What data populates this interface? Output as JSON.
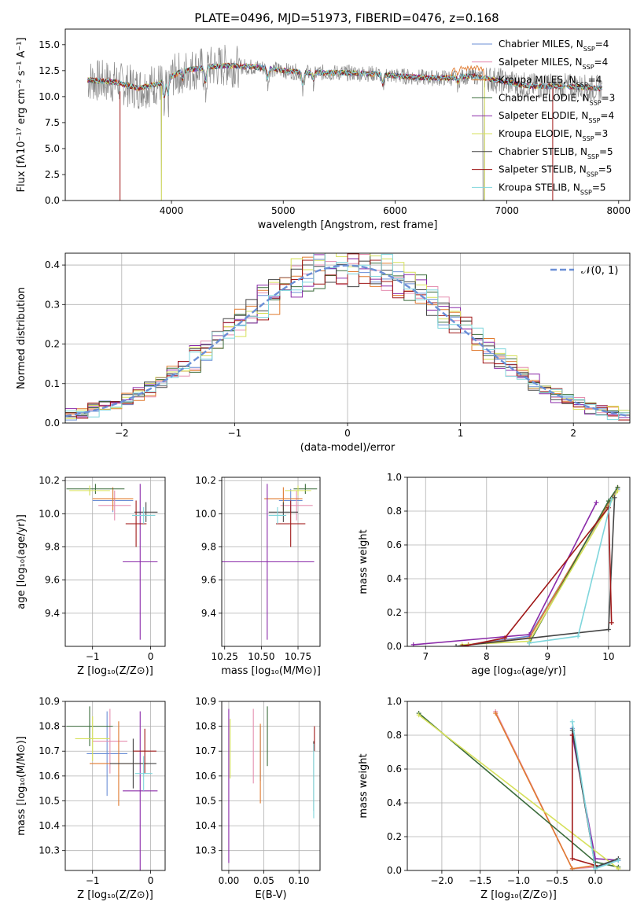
{
  "title": "PLATE=0496, MJD=51973, FIBERID=0476, z=0.168",
  "colors": {
    "c0": "#6b8fd6",
    "c1": "#e58fb0",
    "c2": "#e07a2f",
    "c3": "#3a6b3a",
    "c4": "#8a2aa8",
    "c5": "#d6e05a",
    "c6": "#444444",
    "c7": "#a01818",
    "c8": "#7fd6dc",
    "data": "#888888",
    "norm": "#6b8fd6"
  },
  "chart_data": [
    {
      "id": "spectrum",
      "type": "line",
      "xlabel": "wavelength [Angstrom, rest frame]",
      "ylabel": "Flux [fλ10⁻¹⁷ erg cm⁻² s⁻¹ A⁻¹]",
      "xlim": [
        3050,
        8100
      ],
      "ylim": [
        0,
        16.5
      ],
      "xticks": [
        4000,
        5000,
        6000,
        7000,
        8000
      ],
      "yticks": [
        0.0,
        2.5,
        5.0,
        7.5,
        10.0,
        12.5,
        15.0
      ],
      "legend": {
        "position": "right",
        "entries": [
          "Chabrier MILES, N",
          "Salpeter MILES, N",
          "Kroupa MILES, N",
          "Chabrier ELODIE, N",
          "Salpeter ELODIE, N",
          "Kroupa ELODIE, N",
          "Chabrier STELIB, N",
          "Salpeter STELIB, N",
          "Kroupa STELIB, N"
        ],
        "nssp": [
          "4",
          "4",
          "4",
          "3",
          "4",
          "3",
          "5",
          "5",
          "5"
        ],
        "sub": "SSP"
      },
      "continuum": {
        "x": [
          3250,
          3500,
          3700,
          3900,
          4100,
          4300,
          4500,
          4800,
          5000,
          5200,
          5500,
          5800,
          6000,
          6300,
          6500,
          6700,
          6900,
          7200,
          7500,
          7800
        ],
        "y": [
          11.6,
          11.4,
          10.8,
          11.3,
          12.5,
          12.8,
          13.0,
          12.8,
          12.5,
          12.3,
          12.3,
          12.2,
          12.0,
          11.8,
          11.8,
          12.0,
          11.6,
          11.0,
          11.0,
          10.8
        ]
      }
    },
    {
      "id": "residuals",
      "type": "histogram",
      "xlabel": "(data-model)/error",
      "ylabel": "Normed distribution",
      "xlim": [
        -2.5,
        2.5
      ],
      "ylim": [
        0,
        0.43
      ],
      "xticks": [
        -2,
        -1,
        0,
        1,
        2
      ],
      "yticks": [
        0.0,
        0.1,
        0.2,
        0.3,
        0.4
      ],
      "legend": {
        "label": "𝒩(0, 1)",
        "position": "top-right"
      },
      "bin_width": 0.1
    },
    {
      "id": "age_Z",
      "type": "scatter",
      "xlabel": "Z [log₁₀(Z/Z⊙)]",
      "ylabel": "age  [log₁₀(age/yr)]",
      "xlim": [
        -1.47,
        0.25
      ],
      "ylim": [
        9.2,
        10.22
      ],
      "xticks": [
        -1,
        0
      ],
      "yticks": [
        9.4,
        9.6,
        9.8,
        10.0,
        10.2
      ],
      "points": [
        {
          "c": "c0",
          "x": -0.65,
          "y": 10.08,
          "xe": 0.35,
          "ye": 0.07
        },
        {
          "c": "c1",
          "x": -0.62,
          "y": 10.05,
          "xe": 0.28,
          "ye": 0.09
        },
        {
          "c": "c2",
          "x": -0.65,
          "y": 10.09,
          "xe": 0.35,
          "ye": 0.07
        },
        {
          "c": "c3",
          "x": -0.95,
          "y": 10.15,
          "xe": 0.5,
          "ye": 0.03
        },
        {
          "c": "c4",
          "x": -0.18,
          "y": 9.71,
          "xe": 0.3,
          "ye": 0.47
        },
        {
          "c": "c5",
          "x": -1.05,
          "y": 10.14,
          "xe": 0.35,
          "ye": 0.03
        },
        {
          "c": "c6",
          "x": -0.08,
          "y": 10.01,
          "xe": 0.2,
          "ye": 0.06
        },
        {
          "c": "c7",
          "x": -0.25,
          "y": 9.94,
          "xe": 0.18,
          "ye": 0.14
        },
        {
          "c": "c8",
          "x": -0.12,
          "y": 9.99,
          "xe": 0.2,
          "ye": 0.05
        }
      ]
    },
    {
      "id": "age_mass",
      "type": "scatter",
      "xlabel": "mass [log₁₀(M/M⊙)]",
      "ylabel": "",
      "xlim": [
        10.23,
        10.9
      ],
      "ylim": [
        9.2,
        10.22
      ],
      "xticks": [
        10.25,
        10.5,
        10.75
      ],
      "yticks": [
        9.4,
        9.6,
        9.8,
        10.0,
        10.2
      ],
      "points": [
        {
          "c": "c0",
          "x": 10.7,
          "y": 10.08,
          "xe": 0.08,
          "ye": 0.07
        },
        {
          "c": "c1",
          "x": 10.74,
          "y": 10.05,
          "xe": 0.11,
          "ye": 0.09
        },
        {
          "c": "c2",
          "x": 10.65,
          "y": 10.09,
          "xe": 0.13,
          "ye": 0.07
        },
        {
          "c": "c3",
          "x": 10.8,
          "y": 10.15,
          "xe": 0.08,
          "ye": 0.03
        },
        {
          "c": "c4",
          "x": 10.54,
          "y": 9.71,
          "xe": 0.32,
          "ye": 0.47
        },
        {
          "c": "c5",
          "x": 10.75,
          "y": 10.14,
          "xe": 0.09,
          "ye": 0.03
        },
        {
          "c": "c6",
          "x": 10.65,
          "y": 10.01,
          "xe": 0.1,
          "ye": 0.06
        },
        {
          "c": "c7",
          "x": 10.7,
          "y": 9.94,
          "xe": 0.1,
          "ye": 0.14
        },
        {
          "c": "c8",
          "x": 10.61,
          "y": 9.99,
          "xe": 0.06,
          "ye": 0.05
        }
      ]
    },
    {
      "id": "weight_age",
      "type": "line",
      "xlabel": "age  [log₁₀(age/yr)]",
      "ylabel": "mass weight",
      "xlim": [
        6.7,
        10.35
      ],
      "ylim": [
        0,
        1
      ],
      "xticks": [
        7,
        8,
        9,
        10
      ],
      "yticks": [
        0.0,
        0.2,
        0.4,
        0.6,
        0.8,
        1.0
      ],
      "series": [
        {
          "c": "c0",
          "x": [
            7.7,
            8.7,
            10.15
          ],
          "y": [
            0.01,
            0.06,
            0.93
          ]
        },
        {
          "c": "c1",
          "x": [
            7.7,
            8.7,
            10.15
          ],
          "y": [
            0.01,
            0.05,
            0.94
          ]
        },
        {
          "c": "c2",
          "x": [
            7.7,
            8.7,
            10.15
          ],
          "y": [
            0.01,
            0.05,
            0.94
          ]
        },
        {
          "c": "c3",
          "x": [
            8.7,
            10.0,
            10.15
          ],
          "y": [
            0.02,
            0.86,
            0.94
          ]
        },
        {
          "c": "c4",
          "x": [
            6.8,
            8.7,
            9.8
          ],
          "y": [
            0.01,
            0.07,
            0.85
          ]
        },
        {
          "c": "c5",
          "x": [
            7.6,
            8.7,
            10.15
          ],
          "y": [
            0.01,
            0.03,
            0.92
          ]
        },
        {
          "c": "c6",
          "x": [
            7.5,
            10.0,
            10.1
          ],
          "y": [
            0.0,
            0.1,
            0.88
          ]
        },
        {
          "c": "c7",
          "x": [
            7.6,
            8.3,
            10.0,
            10.05
          ],
          "y": [
            0.0,
            0.05,
            0.82,
            0.14
          ]
        },
        {
          "c": "c8",
          "x": [
            8.7,
            9.5,
            10.05
          ],
          "y": [
            0.02,
            0.06,
            0.87
          ]
        }
      ]
    },
    {
      "id": "mass_Z",
      "type": "scatter",
      "xlabel": "Z [log₁₀(Z/Z⊙)]",
      "ylabel": "mass [log₁₀(M/M⊙)]",
      "xlim": [
        -1.47,
        0.25
      ],
      "ylim": [
        10.22,
        10.9
      ],
      "xticks": [
        -1,
        0
      ],
      "yticks": [
        10.3,
        10.4,
        10.5,
        10.6,
        10.7,
        10.8,
        10.9
      ],
      "points": [
        {
          "c": "c0",
          "x": -0.75,
          "y": 10.69,
          "xe": 0.35,
          "ye": 0.17
        },
        {
          "c": "c1",
          "x": -0.7,
          "y": 10.74,
          "xe": 0.3,
          "ye": 0.13
        },
        {
          "c": "c2",
          "x": -0.55,
          "y": 10.65,
          "xe": 0.5,
          "ye": 0.17
        },
        {
          "c": "c3",
          "x": -1.05,
          "y": 10.8,
          "xe": 0.4,
          "ye": 0.08
        },
        {
          "c": "c4",
          "x": -0.18,
          "y": 10.54,
          "xe": 0.3,
          "ye": 0.32
        },
        {
          "c": "c5",
          "x": -1.0,
          "y": 10.75,
          "xe": 0.3,
          "ye": 0.09
        },
        {
          "c": "c6",
          "x": -0.3,
          "y": 10.65,
          "xe": 0.4,
          "ye": 0.1
        },
        {
          "c": "c7",
          "x": -0.1,
          "y": 10.7,
          "xe": 0.2,
          "ye": 0.09
        },
        {
          "c": "c8",
          "x": -0.12,
          "y": 10.61,
          "xe": 0.15,
          "ye": 0.07
        }
      ]
    },
    {
      "id": "mass_ebv",
      "type": "scatter",
      "xlabel": "E(B-V)",
      "ylabel": "",
      "xlim": [
        -0.01,
        0.13
      ],
      "ylim": [
        10.22,
        10.9
      ],
      "xticks": [
        0.0,
        0.05,
        0.1
      ],
      "yticks": [
        10.3,
        10.4,
        10.5,
        10.6,
        10.7,
        10.8,
        10.9
      ],
      "points": [
        {
          "c": "c0",
          "x": 0.045,
          "y": 10.69,
          "ye": 0.11
        },
        {
          "c": "c1",
          "x": 0.035,
          "y": 10.72,
          "ye": 0.15
        },
        {
          "c": "c2",
          "x": 0.045,
          "y": 10.65,
          "ye": 0.16
        },
        {
          "c": "c3",
          "x": 0.055,
          "y": 10.76,
          "ye": 0.12
        },
        {
          "c": "c4",
          "x": 0.0,
          "y": 10.56,
          "ye": 0.31
        },
        {
          "c": "c5",
          "x": 0.002,
          "y": 10.71,
          "ye": 0.12
        },
        {
          "c": "c6",
          "x": 0.121,
          "y": 10.6,
          "ye": 0.14
        },
        {
          "c": "c7",
          "x": 0.122,
          "y": 10.75,
          "ye": 0.05
        },
        {
          "c": "c8",
          "x": 0.121,
          "y": 10.58,
          "ye": 0.15
        }
      ]
    },
    {
      "id": "weight_Z",
      "type": "line",
      "xlabel": "Z [log₁₀(Z/Z⊙)]",
      "ylabel": "mass weight",
      "xlim": [
        -2.45,
        0.45
      ],
      "ylim": [
        0,
        1
      ],
      "xticks": [
        -2.0,
        -1.5,
        -1.0,
        -0.5,
        0.0
      ],
      "yticks": [
        0.0,
        0.2,
        0.4,
        0.6,
        0.8,
        1.0
      ],
      "series": [
        {
          "c": "c0",
          "x": [
            -0.3,
            0.0,
            0.3
          ],
          "y": [
            0.84,
            0.02,
            0.06
          ]
        },
        {
          "c": "c1",
          "x": [
            -1.3,
            -0.3,
            0.0
          ],
          "y": [
            0.94,
            0.01,
            0.02
          ]
        },
        {
          "c": "c2",
          "x": [
            -1.3,
            -0.3,
            0.0
          ],
          "y": [
            0.93,
            0.01,
            0.03
          ]
        },
        {
          "c": "c3",
          "x": [
            -2.3,
            0.0,
            0.3
          ],
          "y": [
            0.93,
            0.05,
            0.02
          ]
        },
        {
          "c": "c4",
          "x": [
            -0.3,
            0.0,
            0.3
          ],
          "y": [
            0.8,
            0.07,
            0.06
          ]
        },
        {
          "c": "c5",
          "x": [
            -2.3,
            0.3
          ],
          "y": [
            0.92,
            0.01
          ]
        },
        {
          "c": "c6",
          "x": [
            -0.3,
            0.0,
            0.3
          ],
          "y": [
            0.83,
            0.02,
            0.07
          ]
        },
        {
          "c": "c7",
          "x": [
            -0.3,
            -0.3,
            0.0
          ],
          "y": [
            0.8,
            0.07,
            0.03
          ]
        },
        {
          "c": "c8",
          "x": [
            -0.3,
            0.0,
            0.3
          ],
          "y": [
            0.88,
            0.01,
            0.06
          ]
        }
      ]
    }
  ]
}
